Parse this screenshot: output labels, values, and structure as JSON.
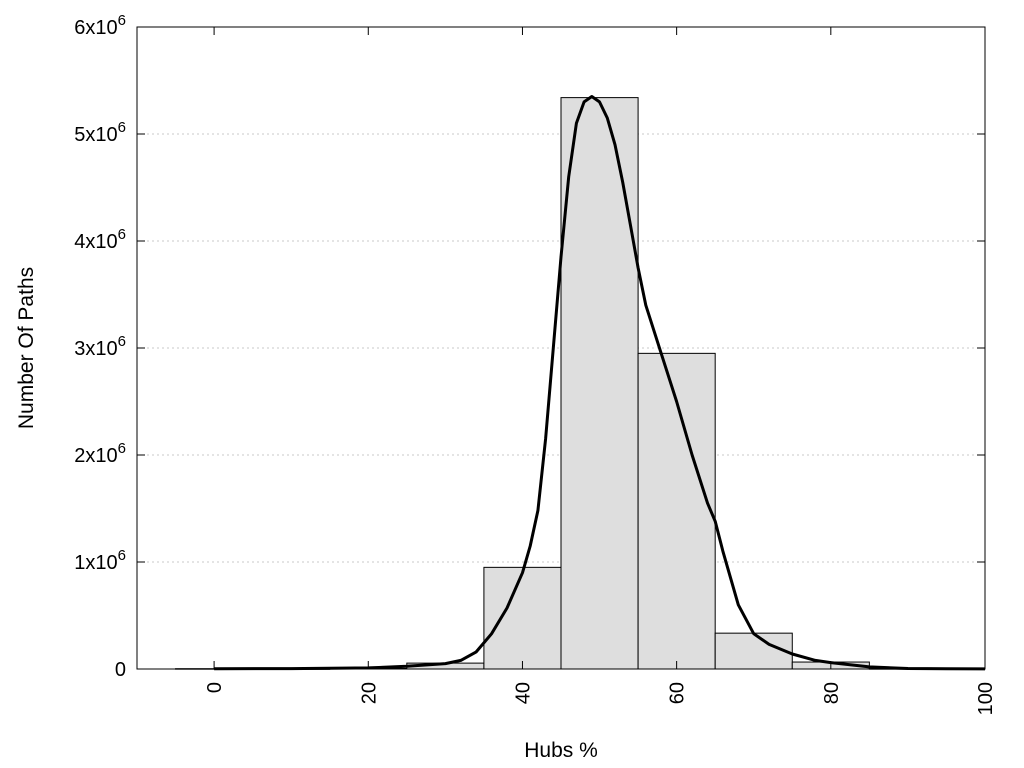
{
  "chart_data": {
    "type": "bar",
    "title": "",
    "xlabel": "Hubs %",
    "ylabel": "Number Of Paths",
    "xlim": [
      -10,
      100
    ],
    "ylim": [
      0,
      6000000
    ],
    "grid": "horizontal dotted",
    "x_ticks": [
      {
        "value": 0,
        "label": "0"
      },
      {
        "value": 20,
        "label": "20"
      },
      {
        "value": 40,
        "label": "40"
      },
      {
        "value": 60,
        "label": "60"
      },
      {
        "value": 80,
        "label": "80"
      },
      {
        "value": 100,
        "label": "100"
      }
    ],
    "y_ticks": [
      {
        "value": 0,
        "base": "0",
        "exp": ""
      },
      {
        "value": 1000000,
        "base": "1x10",
        "exp": "6"
      },
      {
        "value": 2000000,
        "base": "2x10",
        "exp": "6"
      },
      {
        "value": 3000000,
        "base": "3x10",
        "exp": "6"
      },
      {
        "value": 4000000,
        "base": "4x10",
        "exp": "6"
      },
      {
        "value": 5000000,
        "base": "5x10",
        "exp": "6"
      },
      {
        "value": 6000000,
        "base": "6x10",
        "exp": "6"
      }
    ],
    "bin_width": 10,
    "bins": [
      {
        "center": 0,
        "value": 3000
      },
      {
        "center": 10,
        "value": 2000
      },
      {
        "center": 20,
        "value": 5000
      },
      {
        "center": 30,
        "value": 55000
      },
      {
        "center": 40,
        "value": 950000
      },
      {
        "center": 50,
        "value": 5340000
      },
      {
        "center": 60,
        "value": 2950000
      },
      {
        "center": 70,
        "value": 335000
      },
      {
        "center": 80,
        "value": 65000
      },
      {
        "center": 90,
        "value": 3000
      }
    ],
    "fit_curve": {
      "x": [
        0,
        10,
        20,
        25,
        30,
        32,
        34,
        36,
        38,
        40,
        41,
        42,
        43,
        44,
        45,
        46,
        47,
        48,
        49,
        50,
        51,
        52,
        53,
        54,
        55,
        56,
        58,
        60,
        62,
        64,
        65,
        66,
        68,
        70,
        72,
        75,
        78,
        80,
        85,
        90,
        95,
        100
      ],
      "y": [
        3000,
        4000,
        10000,
        25000,
        50000,
        80000,
        160000,
        330000,
        570000,
        900000,
        1150000,
        1480000,
        2150000,
        3000000,
        3850000,
        4600000,
        5100000,
        5300000,
        5350000,
        5300000,
        5150000,
        4900000,
        4550000,
        4150000,
        3750000,
        3400000,
        2950000,
        2500000,
        2000000,
        1550000,
        1380000,
        1100000,
        600000,
        330000,
        230000,
        140000,
        80000,
        60000,
        20000,
        5000,
        2000,
        1000
      ]
    }
  }
}
